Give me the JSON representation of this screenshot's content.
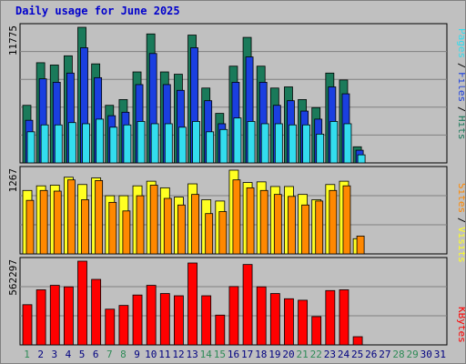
{
  "header": {
    "title": "Daily usage for June 2025"
  },
  "colors": {
    "hits": "#1a7a5a",
    "files": "#1a3fe0",
    "pages": "#33ddee",
    "visits": "#ffff22",
    "sites": "#ff8800",
    "kbytes": "#ff0000",
    "label_weekday": "#000080",
    "label_weekend": "#2e8b57"
  },
  "chart_data": [
    {
      "type": "bar",
      "title": "Daily usage for June 2025",
      "y_max_label": "11775",
      "ylim": [
        0,
        11775
      ],
      "categories": [
        "1",
        "2",
        "3",
        "4",
        "5",
        "6",
        "7",
        "8",
        "9",
        "10",
        "11",
        "12",
        "13",
        "14",
        "15",
        "16",
        "17",
        "18",
        "19",
        "20",
        "21",
        "22",
        "23",
        "24",
        "25",
        "26",
        "27",
        "28",
        "29",
        "30",
        "31"
      ],
      "weekend_days": [
        "1",
        "7",
        "8",
        "14",
        "15",
        "21",
        "22",
        "28",
        "29"
      ],
      "legend": [
        "Hits",
        "Files",
        "Pages"
      ],
      "series": [
        {
          "name": "Hits",
          "values": [
            5000,
            8700,
            8500,
            9300,
            11775,
            8600,
            5000,
            5500,
            7900,
            11200,
            7900,
            7700,
            11100,
            6500,
            4300,
            8400,
            10900,
            8400,
            6500,
            6600,
            5500,
            4800,
            7800,
            7200,
            1400,
            0,
            0,
            0,
            0,
            0,
            0
          ]
        },
        {
          "name": "Files",
          "values": [
            3700,
            7300,
            7000,
            7800,
            10000,
            7400,
            4100,
            4400,
            6800,
            9500,
            6800,
            6300,
            10000,
            5400,
            3400,
            7000,
            9200,
            7000,
            5000,
            5400,
            4500,
            3800,
            6600,
            6000,
            1100,
            0,
            0,
            0,
            0,
            0,
            0
          ]
        },
        {
          "name": "Pages",
          "values": [
            2700,
            3300,
            3300,
            3500,
            3400,
            3800,
            3100,
            3300,
            3600,
            3400,
            3400,
            3100,
            3600,
            2700,
            2900,
            3900,
            3600,
            3400,
            3400,
            3300,
            3300,
            2500,
            3600,
            3400,
            700,
            0,
            0,
            0,
            0,
            0,
            0
          ]
        }
      ]
    },
    {
      "type": "bar",
      "y_max_label": "1267",
      "ylim": [
        0,
        1267
      ],
      "legend": [
        "Visits",
        "Sites"
      ],
      "series": [
        {
          "name": "Visits",
          "values": [
            960,
            1030,
            1040,
            1160,
            1050,
            1150,
            880,
            880,
            1030,
            1100,
            1000,
            860,
            1060,
            820,
            800,
            1267,
            1080,
            1090,
            1020,
            1020,
            900,
            820,
            1050,
            1100,
            230,
            0,
            0,
            0,
            0,
            0,
            0
          ]
        },
        {
          "name": "Sites",
          "values": [
            810,
            960,
            950,
            1120,
            820,
            1110,
            780,
            650,
            880,
            1040,
            840,
            740,
            900,
            610,
            640,
            1120,
            1000,
            960,
            900,
            870,
            740,
            800,
            960,
            1030,
            270,
            0,
            0,
            0,
            0,
            0,
            0
          ]
        }
      ]
    },
    {
      "type": "bar",
      "y_max_label": "562297",
      "ylim": [
        0,
        562297
      ],
      "legend": [
        "KBytes"
      ],
      "series": [
        {
          "name": "KBytes",
          "values": [
            270000,
            370000,
            400000,
            390000,
            562297,
            440000,
            240000,
            265000,
            335000,
            400000,
            345000,
            330000,
            550000,
            330000,
            200000,
            392000,
            540000,
            390000,
            345000,
            310000,
            300000,
            190000,
            365000,
            370000,
            55000,
            0,
            0,
            0,
            0,
            0,
            0
          ]
        }
      ]
    }
  ]
}
